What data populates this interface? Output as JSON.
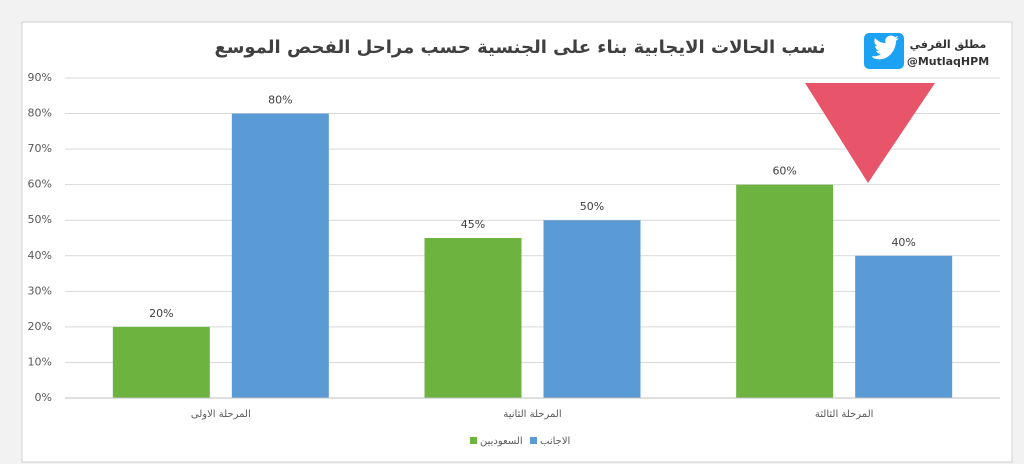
{
  "account": {
    "name": "مطلق القرفي",
    "handle": "@MutlaqHPM"
  },
  "chart_data": {
    "type": "bar",
    "title": "نسب الحالات الايجابية بناء على الجنسية حسب مراحل الفحص الموسع",
    "categories": [
      "المرحلة الاولى",
      "المرحلة الثانية",
      "المرحلة الثالثة"
    ],
    "series": [
      {
        "name": "السعوديين",
        "color": "#6db33f",
        "values": [
          20,
          45,
          60
        ],
        "value_labels": [
          "20%",
          "45%",
          "60%"
        ]
      },
      {
        "name": "الاجانب",
        "color": "#5b9bd5",
        "values": [
          80,
          50,
          40
        ],
        "value_labels": [
          "80%",
          "50%",
          "40%"
        ]
      }
    ],
    "ylim": [
      0,
      90
    ],
    "yticks": [
      {
        "value": 0,
        "label": "0%"
      },
      {
        "value": 10,
        "label": "10%"
      },
      {
        "value": 20,
        "label": "20%"
      },
      {
        "value": 30,
        "label": "30%"
      },
      {
        "value": 40,
        "label": "40%"
      },
      {
        "value": 50,
        "label": "50%"
      },
      {
        "value": 60,
        "label": "60%"
      },
      {
        "value": 70,
        "label": "70%"
      },
      {
        "value": 80,
        "label": "80%"
      },
      {
        "value": 90,
        "label": "90%"
      }
    ],
    "grid": true,
    "legend": "bottom"
  }
}
